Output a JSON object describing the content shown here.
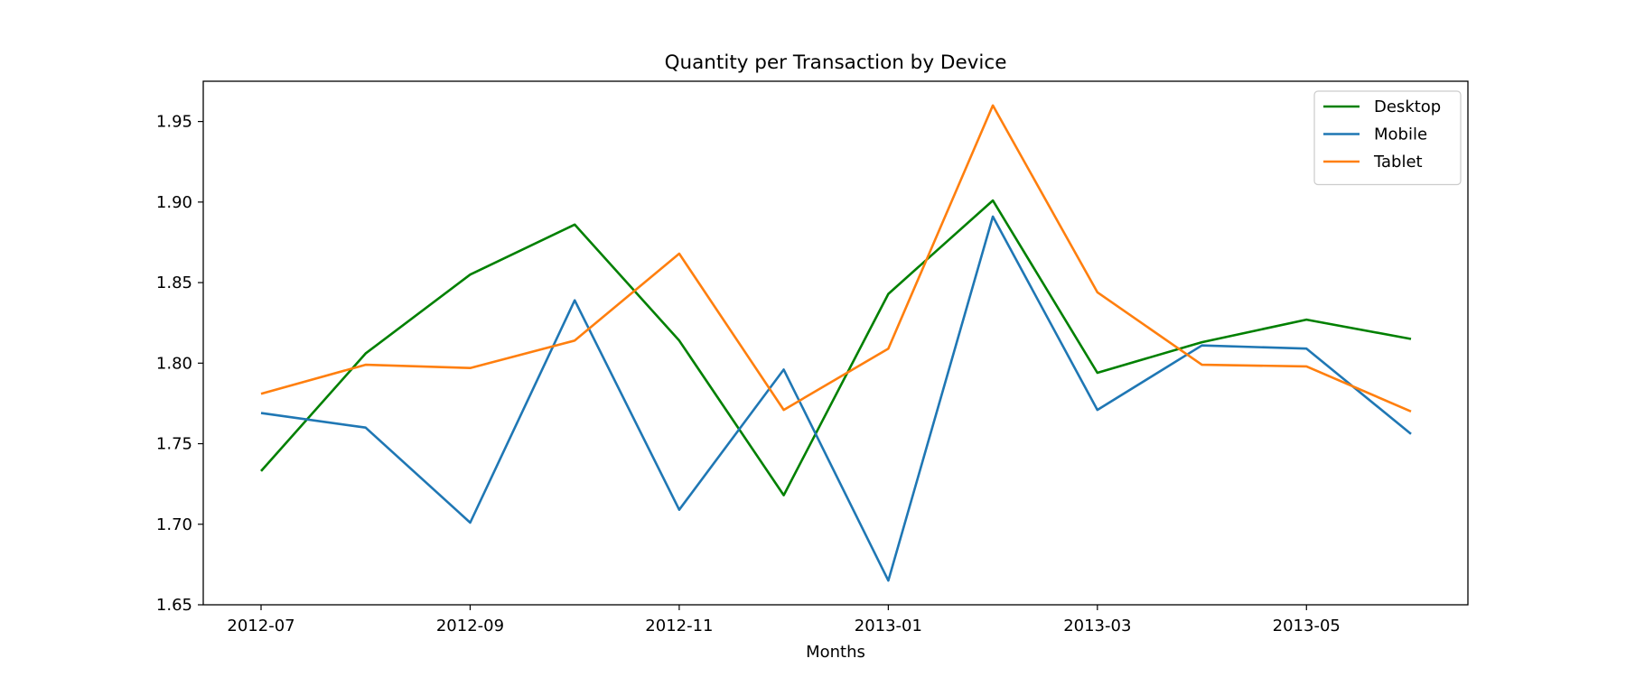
{
  "chart_data": {
    "type": "line",
    "title": "Quantity per Transaction by Device",
    "xlabel": "Months",
    "ylabel": "",
    "x": [
      "2012-07",
      "2012-08",
      "2012-09",
      "2012-10",
      "2012-11",
      "2012-12",
      "2013-01",
      "2013-02",
      "2013-03",
      "2013-04",
      "2013-05",
      "2013-06"
    ],
    "xticks": [
      "2012-07",
      "2012-09",
      "2012-11",
      "2013-01",
      "2013-03",
      "2013-05"
    ],
    "yticks": [
      "1.65",
      "1.70",
      "1.75",
      "1.80",
      "1.85",
      "1.90",
      "1.95"
    ],
    "ylim": [
      1.65,
      1.975
    ],
    "grid": false,
    "legend_position": "top-right",
    "series": [
      {
        "name": "Desktop",
        "color": "#008000",
        "values": [
          1.733,
          1.806,
          1.855,
          1.886,
          1.814,
          1.718,
          1.843,
          1.901,
          1.794,
          1.813,
          1.827,
          1.815
        ]
      },
      {
        "name": "Mobile",
        "color": "#1f77b4",
        "values": [
          1.769,
          1.76,
          1.701,
          1.839,
          1.709,
          1.796,
          1.665,
          1.891,
          1.771,
          1.811,
          1.809,
          1.756
        ]
      },
      {
        "name": "Tablet",
        "color": "#ff7f0e",
        "values": [
          1.781,
          1.799,
          1.797,
          1.814,
          1.868,
          1.771,
          1.809,
          1.96,
          1.844,
          1.799,
          1.798,
          1.77
        ]
      }
    ]
  }
}
